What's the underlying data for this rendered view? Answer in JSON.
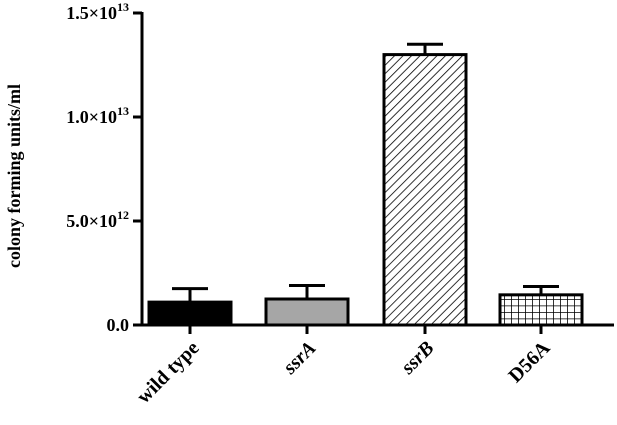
{
  "chart_data": {
    "type": "bar",
    "title": "",
    "xlabel": "",
    "ylabel": "colony forming units/ml",
    "categories": [
      "wild type",
      "ssrA",
      "ssrB",
      "D56A"
    ],
    "category_italic": [
      false,
      true,
      true,
      false
    ],
    "values": [
      1100000000000.0,
      1250000000000.0,
      13000000000000.0,
      1450000000000.0
    ],
    "errors": [
      650000000000.0,
      650000000000.0,
      500000000000.0,
      400000000000.0
    ],
    "fills": [
      "solid-black",
      "solid-gray",
      "diagonal-hatch",
      "grid-hatch"
    ],
    "ylim": [
      0,
      15000000000000.0
    ],
    "yticks": [
      {
        "value": 0,
        "base": "0.0",
        "exp": ""
      },
      {
        "value": 5000000000000.0,
        "base": "5.0×10",
        "exp": "12"
      },
      {
        "value": 10000000000000.0,
        "base": "1.0×10",
        "exp": "13"
      },
      {
        "value": 15000000000000.0,
        "base": "1.5×10",
        "exp": "13"
      }
    ],
    "grid": false,
    "colors": {
      "black": "#000000",
      "gray": "#a6a6a6",
      "white": "#ffffff"
    }
  }
}
